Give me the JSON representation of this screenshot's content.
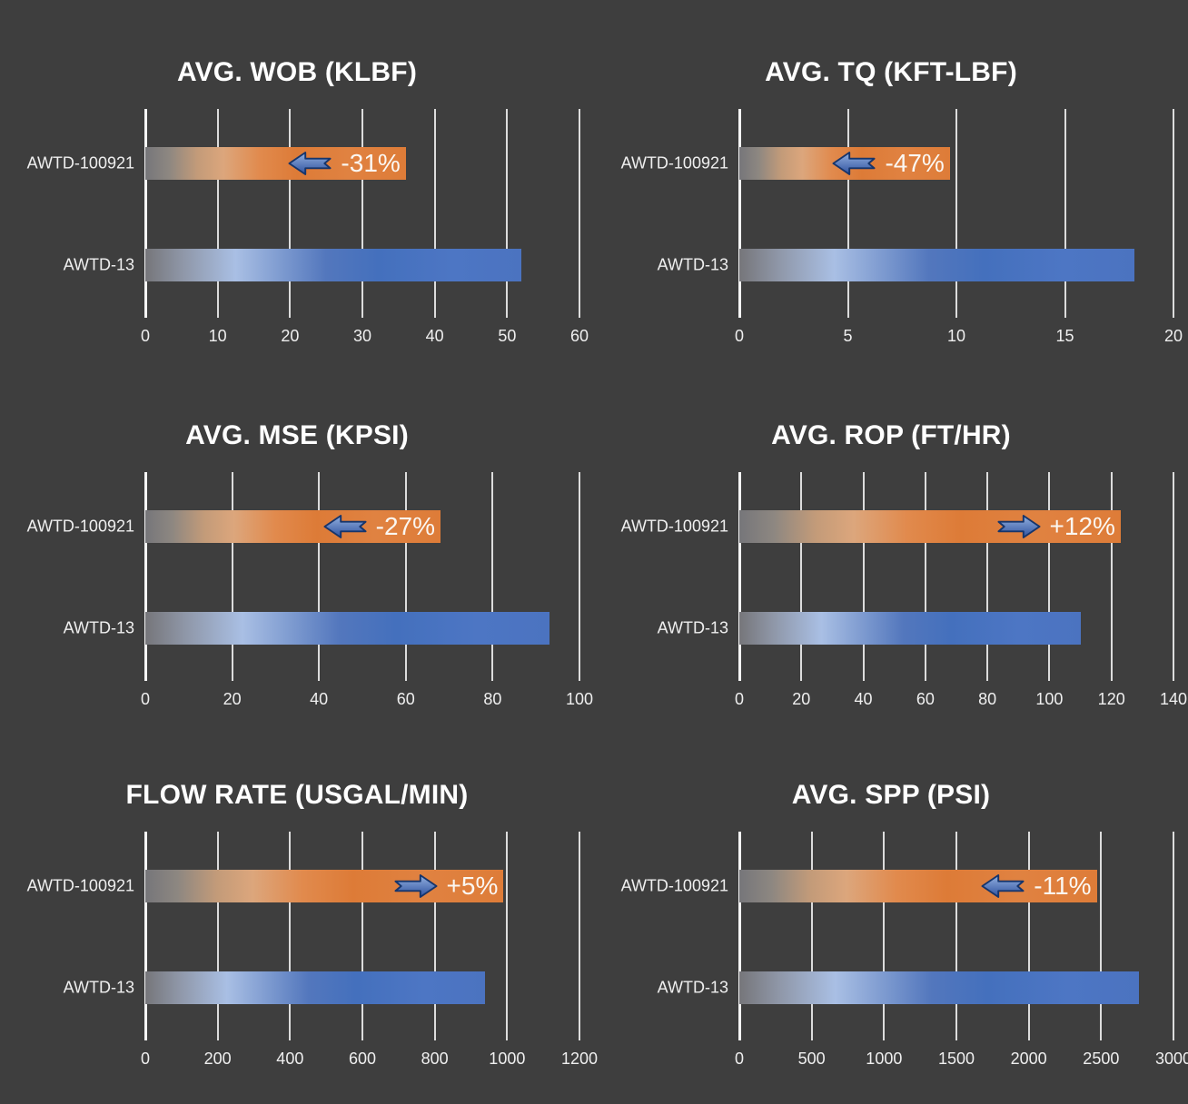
{
  "page": {
    "background_color": "#3E3E3E",
    "gridline_color": "#EDEDED",
    "axis_color": "#F5F5F5",
    "label_color": "#EFEFEF",
    "title_color": "#FFFFFF"
  },
  "colors": {
    "orange_bar": "#DD7B37",
    "blue_bar": "#4472C4",
    "bar_gray_start": "#76767A",
    "arrow_fill_top": "#93B1E0",
    "arrow_fill_bottom": "#2F519E",
    "arrow_outline": "#17356B",
    "delta_text": "#FBF7F2"
  },
  "categories": [
    "AWTD-100921",
    "AWTD-13"
  ],
  "chart_data": [
    {
      "type": "bar",
      "orientation": "horizontal",
      "title": "AVG. WOB (KLBF)",
      "categories": [
        "AWTD-100921",
        "AWTD-13"
      ],
      "values": [
        36,
        52
      ],
      "delta_label": "-31%",
      "delta_direction": "left",
      "xlim": [
        0,
        60
      ],
      "tick_step": 10,
      "ticks": [
        0,
        10,
        20,
        30,
        40,
        50,
        60
      ],
      "grid": true,
      "legend": false
    },
    {
      "type": "bar",
      "orientation": "horizontal",
      "title": "AVG. TQ (KFT-LBF)",
      "categories": [
        "AWTD-100921",
        "AWTD-13"
      ],
      "values": [
        9.7,
        18.2
      ],
      "delta_label": "-47%",
      "delta_direction": "left",
      "xlim": [
        0,
        20
      ],
      "tick_step": 5,
      "ticks": [
        0,
        5,
        10,
        15,
        20
      ],
      "grid": true,
      "legend": false
    },
    {
      "type": "bar",
      "orientation": "horizontal",
      "title": "AVG. MSE (KPSI)",
      "categories": [
        "AWTD-100921",
        "AWTD-13"
      ],
      "values": [
        68,
        93
      ],
      "delta_label": "-27%",
      "delta_direction": "left",
      "xlim": [
        0,
        100
      ],
      "tick_step": 20,
      "ticks": [
        0,
        20,
        40,
        60,
        80,
        100
      ],
      "grid": true,
      "legend": false
    },
    {
      "type": "bar",
      "orientation": "horizontal",
      "title": "AVG. ROP (FT/HR)",
      "categories": [
        "AWTD-100921",
        "AWTD-13"
      ],
      "values": [
        123,
        110
      ],
      "delta_label": "+12%",
      "delta_direction": "right",
      "xlim": [
        0,
        140
      ],
      "tick_step": 20,
      "ticks": [
        0,
        20,
        40,
        60,
        80,
        100,
        120,
        140
      ],
      "grid": true,
      "legend": false
    },
    {
      "type": "bar",
      "orientation": "horizontal",
      "title": "FLOW RATE (USGAL/MIN)",
      "categories": [
        "AWTD-100921",
        "AWTD-13"
      ],
      "values": [
        990,
        940
      ],
      "delta_label": "+5%",
      "delta_direction": "right",
      "xlim": [
        0,
        1200
      ],
      "tick_step": 200,
      "ticks": [
        0,
        200,
        400,
        600,
        800,
        1000,
        1200
      ],
      "grid": true,
      "legend": false
    },
    {
      "type": "bar",
      "orientation": "horizontal",
      "title": "AVG. SPP (PSI)",
      "categories": [
        "AWTD-100921",
        "AWTD-13"
      ],
      "values": [
        2470,
        2760
      ],
      "delta_label": "-11%",
      "delta_direction": "left",
      "xlim": [
        0,
        3000
      ],
      "tick_step": 500,
      "ticks": [
        0,
        500,
        1000,
        1500,
        2000,
        2500,
        3000
      ],
      "grid": true,
      "legend": false
    }
  ]
}
